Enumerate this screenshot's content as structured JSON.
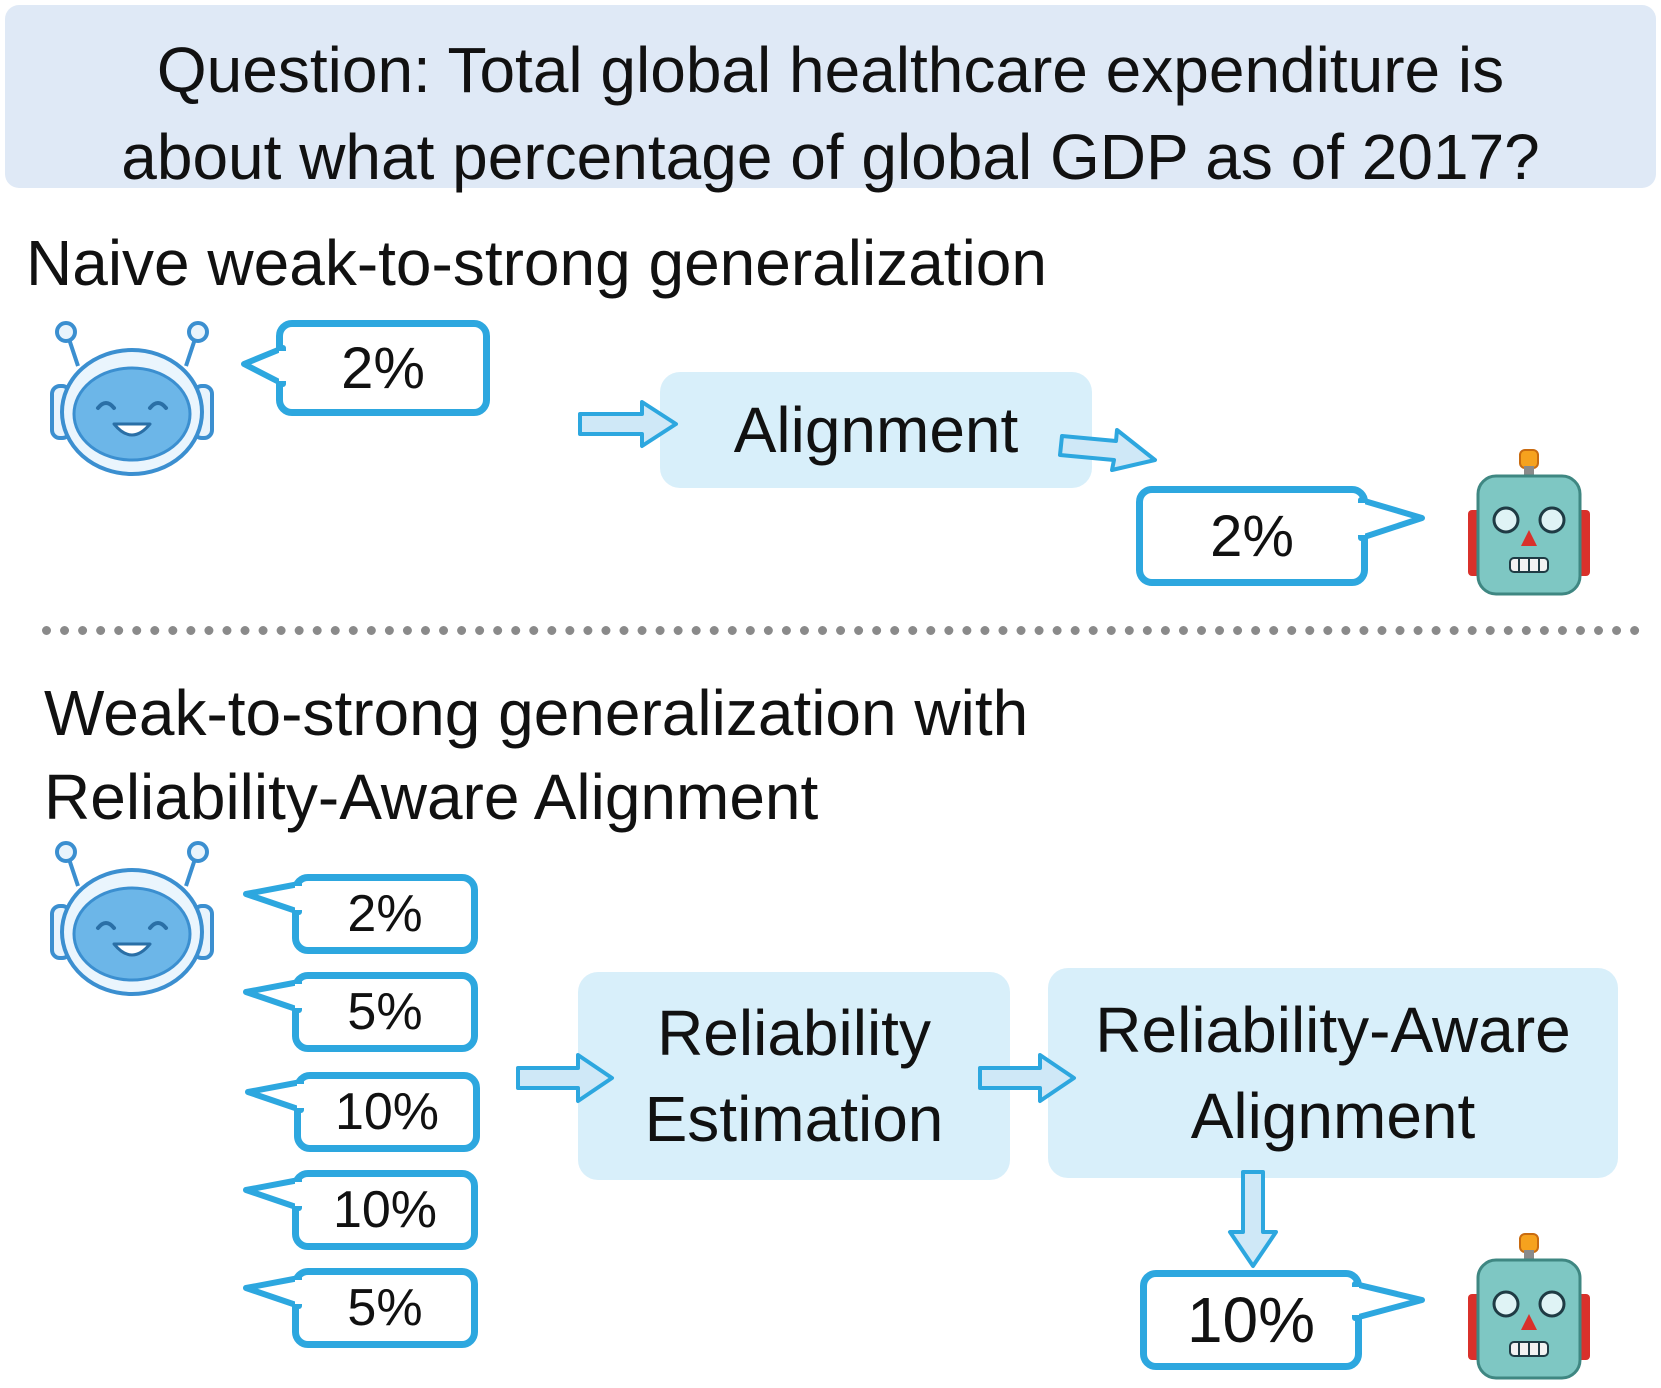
{
  "question": {
    "line1": "Question: Total global healthcare expenditure is",
    "line2": "about what percentage of global GDP as of 2017?"
  },
  "naive": {
    "title": "Naive weak-to-strong generalization",
    "weak_answer": "2%",
    "process": "Alignment",
    "strong_answer": "2%"
  },
  "raa": {
    "title_line1": "Weak-to-strong generalization with",
    "title_line2": "Reliability-Aware Alignment",
    "weak_answers": [
      "2%",
      "5%",
      "10%",
      "10%",
      "5%"
    ],
    "step1_line1": "Reliability",
    "step1_line2": "Estimation",
    "step2_line1": "Reliability-Aware",
    "step2_line2": "Alignment",
    "strong_answer": "10%"
  },
  "icons": {
    "weak_model": "smiling-robot-face-icon",
    "strong_model": "robot-head-icon",
    "flow": "outline-arrow-icon"
  },
  "colors": {
    "bubble_border": "#2da7df",
    "box_fill": "#d8effa",
    "question_fill": "#dfe9f6",
    "arrow_fill": "#cfe8f7"
  }
}
